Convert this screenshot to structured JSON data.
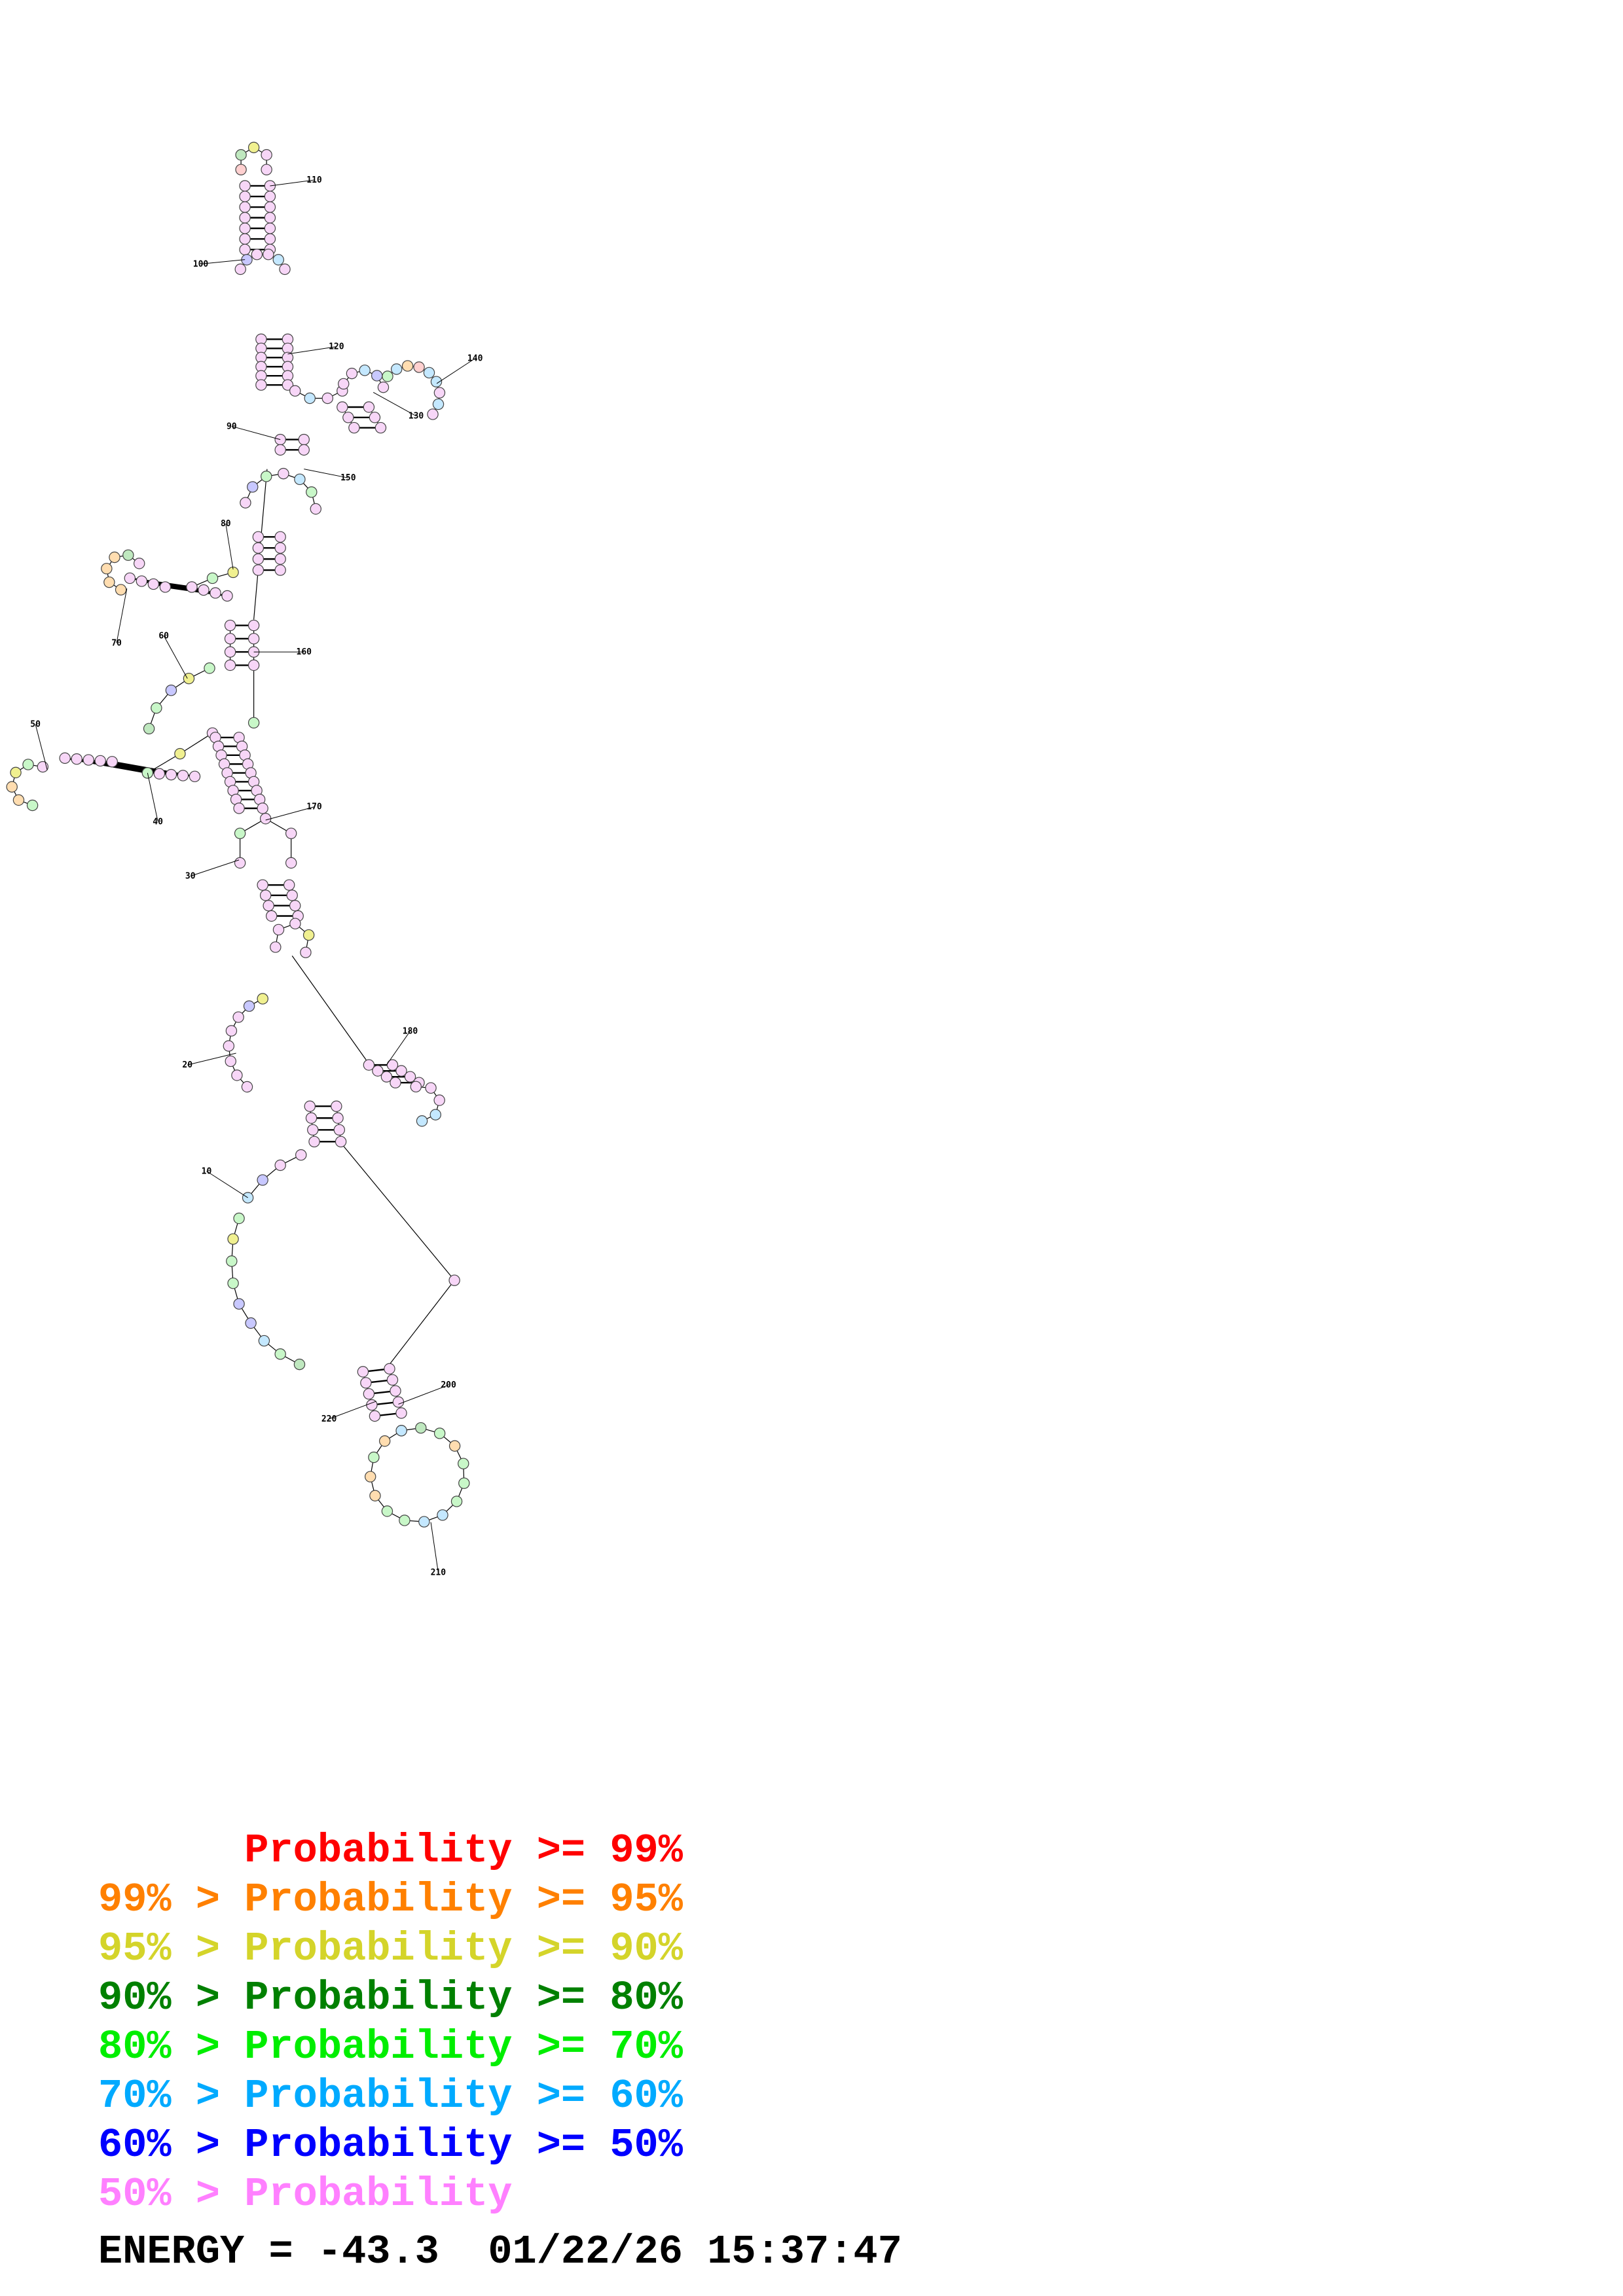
{
  "legend": {
    "rows": [
      {
        "text": "      Probability >= 99%",
        "color": "#ff0000"
      },
      {
        "text": "99% > Probability >= 95%",
        "color": "#ff8000"
      },
      {
        "text": "95% > Probability >= 90%",
        "color": "#d4d42a"
      },
      {
        "text": "90% > Probability >= 80%",
        "color": "#008000"
      },
      {
        "text": "80% > Probability >= 70%",
        "color": "#00ee00"
      },
      {
        "text": "70% > Probability >= 60%",
        "color": "#00aaff"
      },
      {
        "text": "60% > Probability >= 50%",
        "color": "#0000ff"
      },
      {
        "text": "50% > Probability",
        "color": "#ff80ff"
      }
    ]
  },
  "footer": {
    "energy_label": "ENERGY = ",
    "energy_value": "-43.3",
    "timestamp": "01/22/26 15:37:47"
  },
  "structure": {
    "position_labels": [
      "10",
      "20",
      "30",
      "40",
      "50",
      "60",
      "70",
      "80",
      "90",
      "100",
      "110",
      "120",
      "130",
      "140",
      "150",
      "160",
      "170",
      "180",
      "200",
      "210",
      "220"
    ]
  }
}
